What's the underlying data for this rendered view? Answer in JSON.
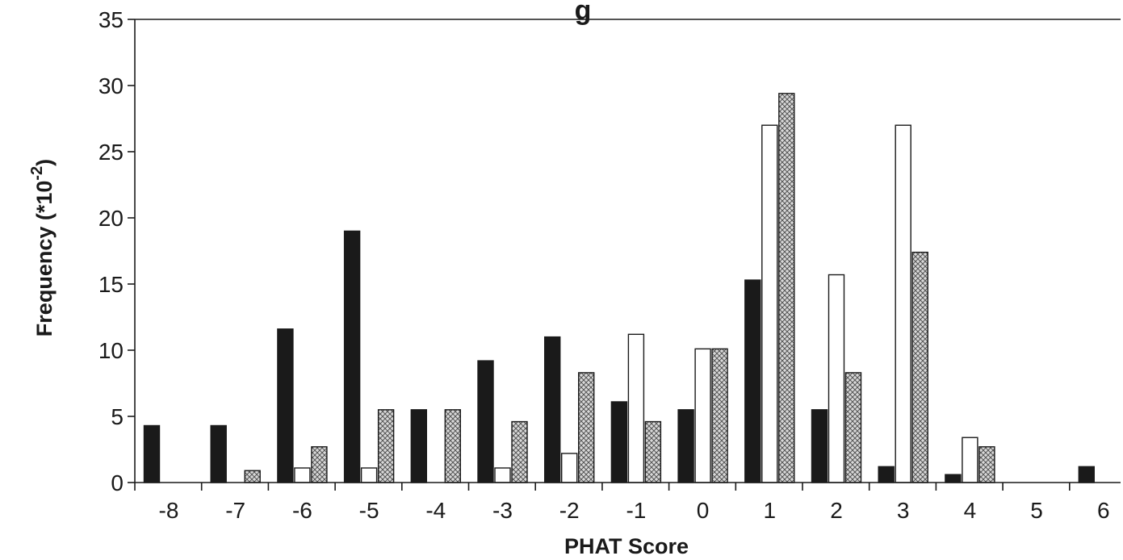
{
  "chart_data": {
    "type": "bar",
    "title_fragment": "g",
    "xlabel": "PHAT Score",
    "ylabel_main": "Frequency (*10",
    "ylabel_exponent": "-2",
    "ylabel_close": ")",
    "ylim": [
      0,
      35
    ],
    "yticks": [
      0,
      5,
      10,
      15,
      20,
      25,
      30,
      35
    ],
    "categories": [
      "-8",
      "-7",
      "-6",
      "-5",
      "-4",
      "-3",
      "-2",
      "-1",
      "0",
      "1",
      "2",
      "3",
      "4",
      "5",
      "6"
    ],
    "series": [
      {
        "style": "solid",
        "color": "#1a1a1a",
        "values": [
          4.3,
          4.3,
          11.6,
          19.0,
          5.5,
          9.2,
          11.0,
          6.1,
          5.5,
          15.3,
          5.5,
          1.2,
          0.6,
          0,
          1.2
        ]
      },
      {
        "style": "hollow",
        "color": "#ffffff",
        "values": [
          0,
          0,
          1.1,
          1.1,
          0,
          1.1,
          2.2,
          11.2,
          10.1,
          27.0,
          15.7,
          27.0,
          3.4,
          0,
          0
        ]
      },
      {
        "style": "crosshatch",
        "color": "#bdbdbd",
        "values": [
          0,
          0.9,
          2.7,
          5.5,
          5.5,
          4.6,
          8.3,
          4.6,
          10.1,
          29.4,
          8.3,
          17.4,
          2.7,
          0,
          0
        ]
      }
    ],
    "grid": false,
    "legend": "none"
  }
}
